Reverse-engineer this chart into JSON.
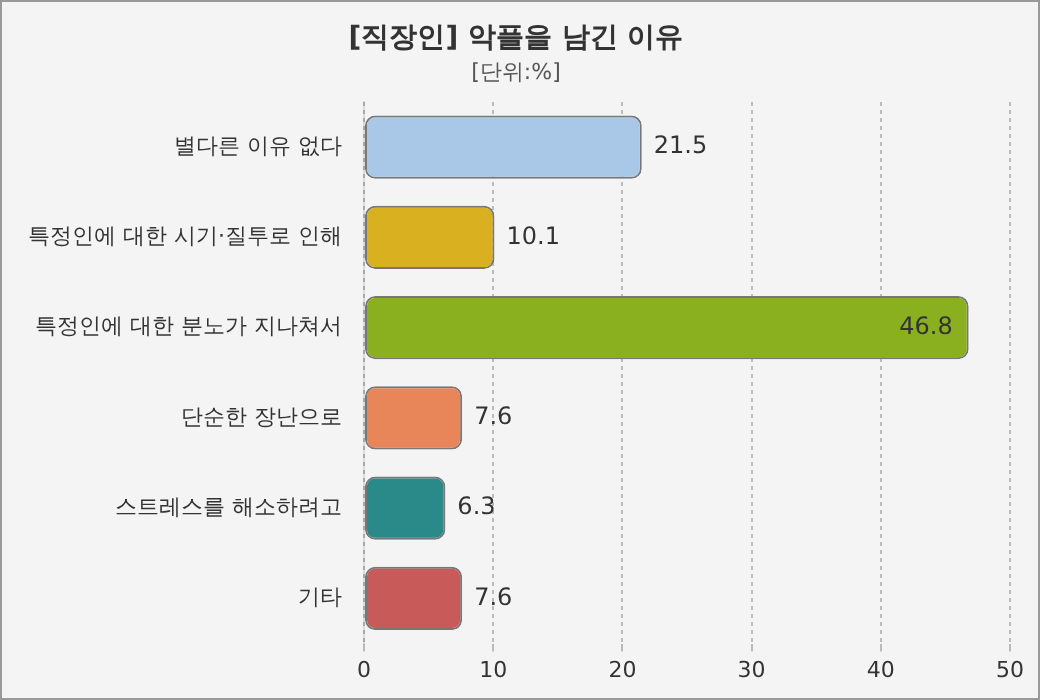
{
  "chart_data": {
    "type": "bar",
    "orientation": "horizontal",
    "title": "[직장인] 악플을 남긴 이유",
    "subtitle": "[단위:%]",
    "categories": [
      "별다른 이유 없다",
      "특정인에 대한 시기·질투로 인해",
      "특정인에 대한 분노가 지나쳐서",
      "단순한 장난으로",
      "스트레스를 해소하려고",
      "기타"
    ],
    "values": [
      21.5,
      10.1,
      46.8,
      7.6,
      6.3,
      7.6
    ],
    "colors": [
      "#a9c8e8",
      "#d8b020",
      "#8ab020",
      "#e8865a",
      "#2a8a8a",
      "#c85a5a"
    ],
    "xlim": [
      0,
      50
    ],
    "xticks": [
      0,
      10,
      20,
      30,
      40,
      50
    ],
    "grid": "x",
    "data_labels": true
  }
}
